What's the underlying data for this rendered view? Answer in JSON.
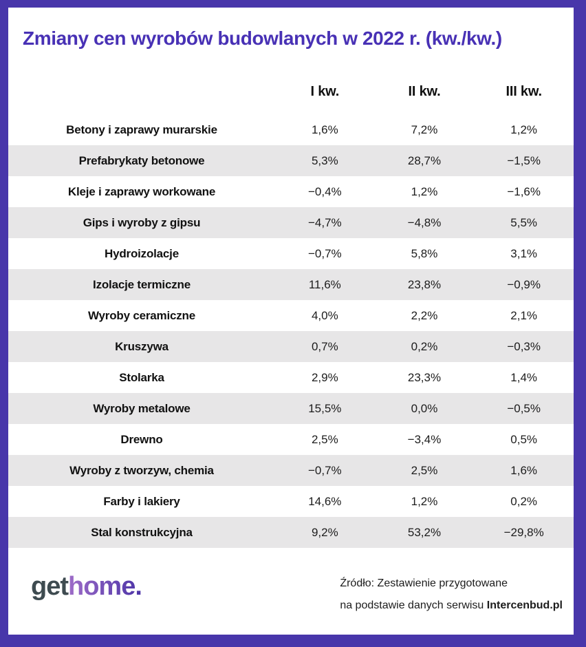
{
  "title": "Zmiany cen wyrobów budowlanych w 2022 r. (kw./kw.)",
  "table": {
    "columns": [
      "I kw.",
      "II kw.",
      "III kw."
    ],
    "rows": [
      {
        "label": "Betony i zaprawy murarskie",
        "values": [
          "1,6%",
          "7,2%",
          "1,2%"
        ]
      },
      {
        "label": "Prefabrykaty betonowe",
        "values": [
          "5,3%",
          "28,7%",
          "−1,5%"
        ]
      },
      {
        "label": "Kleje i zaprawy workowane",
        "values": [
          "−0,4%",
          "1,2%",
          "−1,6%"
        ]
      },
      {
        "label": "Gips i wyroby z gipsu",
        "values": [
          "−4,7%",
          "−4,8%",
          "5,5%"
        ]
      },
      {
        "label": "Hydroizolacje",
        "values": [
          "−0,7%",
          "5,8%",
          "3,1%"
        ]
      },
      {
        "label": "Izolacje termiczne",
        "values": [
          "11,6%",
          "23,8%",
          "−0,9%"
        ]
      },
      {
        "label": "Wyroby ceramiczne",
        "values": [
          "4,0%",
          "2,2%",
          "2,1%"
        ]
      },
      {
        "label": "Kruszywa",
        "values": [
          "0,7%",
          "0,2%",
          "−0,3%"
        ]
      },
      {
        "label": "Stolarka",
        "values": [
          "2,9%",
          "23,3%",
          "1,4%"
        ]
      },
      {
        "label": "Wyroby metalowe",
        "values": [
          "15,5%",
          "0,0%",
          "−0,5%"
        ]
      },
      {
        "label": "Drewno",
        "values": [
          "2,5%",
          "−3,4%",
          "0,5%"
        ]
      },
      {
        "label": "Wyroby z tworzyw, chemia",
        "values": [
          "−0,7%",
          "2,5%",
          "1,6%"
        ]
      },
      {
        "label": "Farby i lakiery",
        "values": [
          "14,6%",
          "1,2%",
          "0,2%"
        ]
      },
      {
        "label": "Stal konstrukcyjna",
        "values": [
          "9,2%",
          "53,2%",
          "−29,8%"
        ]
      }
    ]
  },
  "footer": {
    "logo_part1": "get",
    "logo_part2": "home.",
    "source_line1": "Źródło: Zestawienie przygotowane",
    "source_line2_prefix": "na podstawie danych serwisu ",
    "source_line2_bold": "Intercenbud.pl"
  },
  "colors": {
    "border_purple": "#4836aa",
    "title_purple": "#4831b5",
    "row_alt_gray": "#e7e6e7",
    "text_black": "#111111",
    "logo_get": "#3e4b50",
    "logo_home_gradient_start": "#9e6cc8",
    "logo_home_gradient_end": "#4c34a7"
  },
  "chart_data": {
    "type": "table",
    "title": "Zmiany cen wyrobów budowlanych w 2022 r. (kw./kw.)",
    "unit": "%",
    "categories": [
      "Betony i zaprawy murarskie",
      "Prefabrykaty betonowe",
      "Kleje i zaprawy workowane",
      "Gips i wyroby z gipsu",
      "Hydroizolacje",
      "Izolacje termiczne",
      "Wyroby ceramiczne",
      "Kruszywa",
      "Stolarka",
      "Wyroby metalowe",
      "Drewno",
      "Wyroby z tworzyw, chemia",
      "Farby i lakiery",
      "Stal konstrukcyjna"
    ],
    "series": [
      {
        "name": "I kw.",
        "values": [
          1.6,
          5.3,
          -0.4,
          -4.7,
          -0.7,
          11.6,
          4.0,
          0.7,
          2.9,
          15.5,
          2.5,
          -0.7,
          14.6,
          9.2
        ]
      },
      {
        "name": "II kw.",
        "values": [
          7.2,
          28.7,
          1.2,
          -4.8,
          5.8,
          23.8,
          2.2,
          0.2,
          23.3,
          0.0,
          -3.4,
          2.5,
          1.2,
          53.2
        ]
      },
      {
        "name": "III kw.",
        "values": [
          1.2,
          -1.5,
          -1.6,
          5.5,
          3.1,
          -0.9,
          2.1,
          -0.3,
          1.4,
          -0.5,
          0.5,
          1.6,
          0.2,
          -29.8
        ]
      }
    ],
    "source": "Źródło: Zestawienie przygotowane na podstawie danych serwisu Intercenbud.pl"
  }
}
